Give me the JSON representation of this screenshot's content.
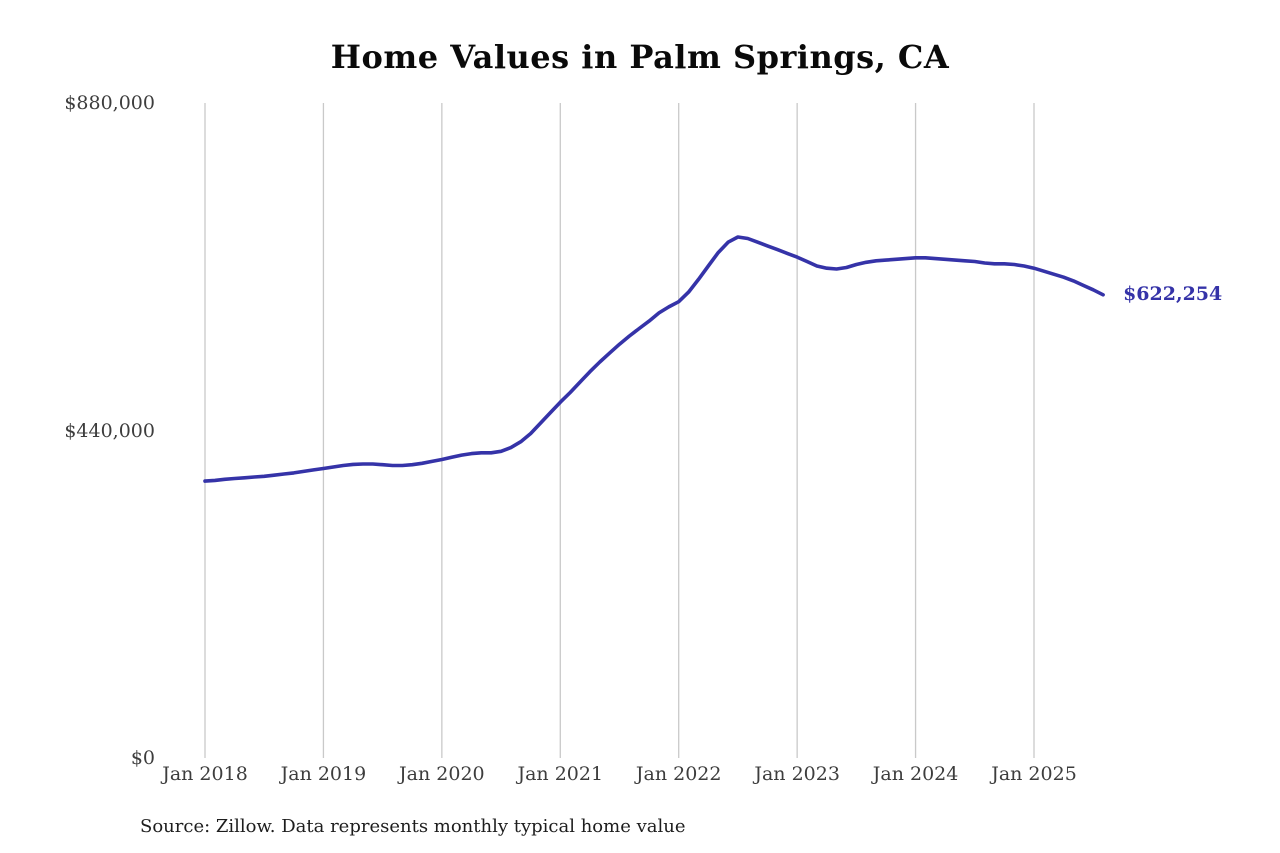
{
  "title": "Home Values in Palm Springs, CA",
  "source_note": "Source: Zillow. Data represents monthly typical home value",
  "end_label": "$622,254",
  "colors": {
    "line": "#3533a8",
    "end_label": "#3533a8",
    "grid": "#c9c9c9",
    "axis_text": "#3d3d3d",
    "title_text": "#0a0a0a"
  },
  "chart_data": {
    "type": "line",
    "title": "Home Values in Palm Springs, CA",
    "xlabel": "",
    "ylabel": "",
    "ylim": [
      0,
      880000
    ],
    "grid": "vertical-only",
    "legend": "none",
    "end_annotation": "$622,254",
    "yticks": [
      {
        "value": 0,
        "label": "$0"
      },
      {
        "value": 440000,
        "label": "$440,000"
      },
      {
        "value": 880000,
        "label": "$880,000"
      }
    ],
    "xticks": [
      {
        "index": 0,
        "label": "Jan 2018"
      },
      {
        "index": 12,
        "label": "Jan 2019"
      },
      {
        "index": 24,
        "label": "Jan 2020"
      },
      {
        "index": 36,
        "label": "Jan 2021"
      },
      {
        "index": 48,
        "label": "Jan 2022"
      },
      {
        "index": 60,
        "label": "Jan 2023"
      },
      {
        "index": 72,
        "label": "Jan 2024"
      },
      {
        "index": 84,
        "label": "Jan 2025"
      }
    ],
    "x": [
      "Jan 2018",
      "Feb 2018",
      "Mar 2018",
      "Apr 2018",
      "May 2018",
      "Jun 2018",
      "Jul 2018",
      "Aug 2018",
      "Sep 2018",
      "Oct 2018",
      "Nov 2018",
      "Dec 2018",
      "Jan 2019",
      "Feb 2019",
      "Mar 2019",
      "Apr 2019",
      "May 2019",
      "Jun 2019",
      "Jul 2019",
      "Aug 2019",
      "Sep 2019",
      "Oct 2019",
      "Nov 2019",
      "Dec 2019",
      "Jan 2020",
      "Feb 2020",
      "Mar 2020",
      "Apr 2020",
      "May 2020",
      "Jun 2020",
      "Jul 2020",
      "Aug 2020",
      "Sep 2020",
      "Oct 2020",
      "Nov 2020",
      "Dec 2020",
      "Jan 2021",
      "Feb 2021",
      "Mar 2021",
      "Apr 2021",
      "May 2021",
      "Jun 2021",
      "Jul 2021",
      "Aug 2021",
      "Sep 2021",
      "Oct 2021",
      "Nov 2021",
      "Dec 2021",
      "Jan 2022",
      "Feb 2022",
      "Mar 2022",
      "Apr 2022",
      "May 2022",
      "Jun 2022",
      "Jul 2022",
      "Aug 2022",
      "Sep 2022",
      "Oct 2022",
      "Nov 2022",
      "Dec 2022",
      "Jan 2023",
      "Feb 2023",
      "Mar 2023",
      "Apr 2023",
      "May 2023",
      "Jun 2023",
      "Jul 2023",
      "Aug 2023",
      "Sep 2023",
      "Oct 2023",
      "Nov 2023",
      "Dec 2023",
      "Jan 2024",
      "Feb 2024",
      "Mar 2024",
      "Apr 2024",
      "May 2024",
      "Jun 2024",
      "Jul 2024",
      "Aug 2024",
      "Sep 2024",
      "Oct 2024",
      "Nov 2024",
      "Dec 2024",
      "Jan 2025",
      "Feb 2025",
      "Mar 2025",
      "Apr 2025",
      "May 2025",
      "Jun 2025",
      "Jul 2025",
      "Aug 2025"
    ],
    "values": [
      372000,
      373000,
      374500,
      375500,
      376500,
      377500,
      378500,
      380000,
      381500,
      383000,
      385000,
      387000,
      389000,
      391000,
      393000,
      394500,
      395000,
      395000,
      394000,
      393000,
      393000,
      394000,
      396000,
      398500,
      401000,
      404000,
      407000,
      409000,
      410000,
      410000,
      412000,
      417000,
      425000,
      436000,
      450000,
      464000,
      478000,
      491000,
      505000,
      519000,
      532000,
      544000,
      556000,
      567000,
      577000,
      587000,
      598000,
      606000,
      613000,
      626000,
      643000,
      661000,
      679000,
      693000,
      700000,
      698000,
      693000,
      688000,
      683000,
      678000,
      673000,
      667000,
      661000,
      658000,
      657000,
      659000,
      663000,
      666000,
      668000,
      669000,
      670000,
      671000,
      672000,
      672000,
      671000,
      670000,
      669000,
      668000,
      667000,
      665000,
      664000,
      664000,
      663000,
      661000,
      658000,
      654000,
      650000,
      646000,
      641000,
      635000,
      629000,
      622254
    ]
  }
}
